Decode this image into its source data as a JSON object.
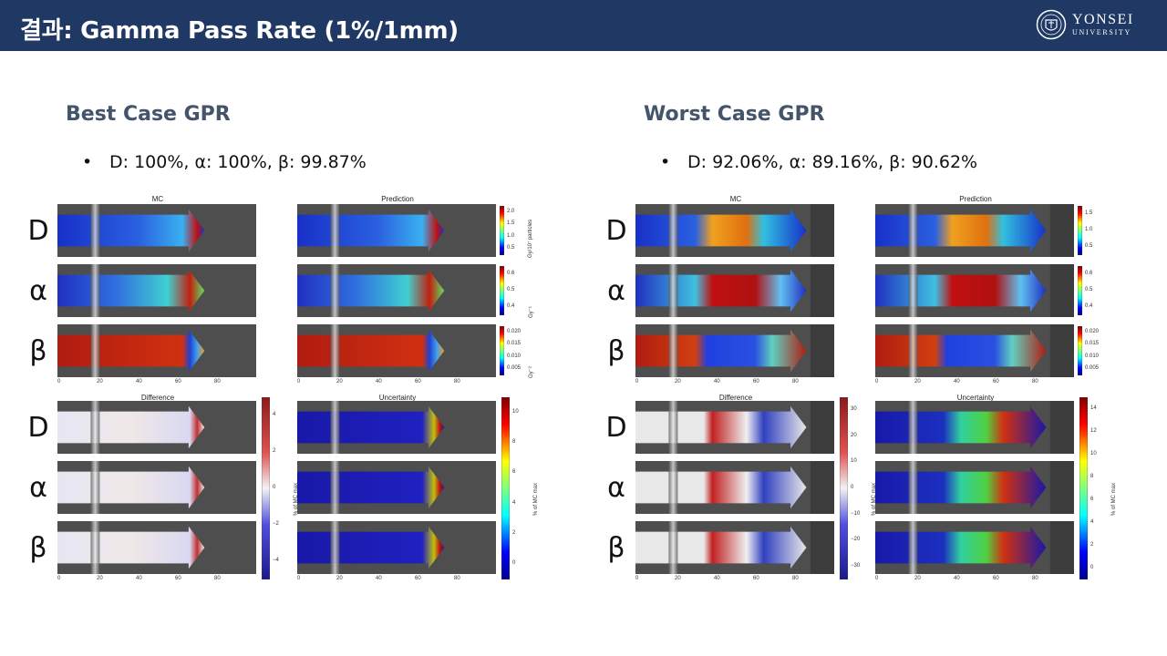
{
  "header": {
    "title": "결과: Gamma Pass Rate (1%/1mm)",
    "logo_name": "YONSEI",
    "logo_sub": "UNIVERSITY"
  },
  "best": {
    "title": "Best Case GPR",
    "bullet": "D: 100%, α: 100%, β: 99.87%"
  },
  "worst": {
    "title": "Worst Case GPR",
    "bullet": "D: 92.06%, α: 89.16%, β: 90.62%"
  },
  "figure": {
    "row_labels": [
      "D",
      "α",
      "β"
    ],
    "top_titles": [
      "MC",
      "Prediction"
    ],
    "bottom_titles": [
      "Difference",
      "Uncertainty"
    ],
    "x_ticks": [
      "0",
      "20",
      "40",
      "60",
      "80"
    ],
    "best_cbar_labels": [
      "Gy/10⁷ particles",
      "Gy⁻¹",
      "Gy⁻²"
    ],
    "best_cbar_ticks": [
      [
        "2.0",
        "1.5",
        "1.0",
        "0.5"
      ],
      [
        "0.6",
        "0.5",
        "0.4"
      ],
      [
        "0.020",
        "0.015",
        "0.010",
        "0.005"
      ]
    ],
    "best_diff_ticks": [
      "4",
      "2",
      "0",
      "−2",
      "−4"
    ],
    "best_unc_ticks": [
      "10",
      "8",
      "6",
      "4",
      "2",
      "0"
    ],
    "worst_cbar_ticks": [
      [
        "1.5",
        "1.0",
        "0.5"
      ],
      [
        "0.6",
        "0.5",
        "0.4"
      ],
      [
        "0.020",
        "0.015",
        "0.010",
        "0.005"
      ]
    ],
    "worst_diff_ticks": [
      "30",
      "20",
      "10",
      "0",
      "−10",
      "−20",
      "−30"
    ],
    "worst_unc_ticks": [
      "14",
      "12",
      "10",
      "8",
      "6",
      "4",
      "2",
      "0"
    ],
    "pct_label": "% of MC max"
  },
  "colors": {
    "header_bg": "#203864",
    "case_title": "#44546a"
  }
}
